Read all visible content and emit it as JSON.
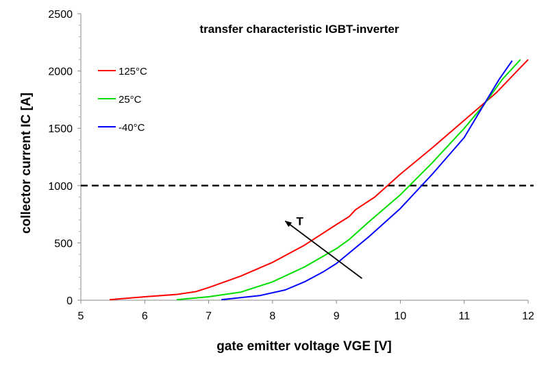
{
  "chart_data": {
    "type": "line",
    "title": "transfer characteristic IGBT-inverter",
    "xlabel": "gate emitter voltage VGE [V]",
    "ylabel": "collector current IC [A]",
    "xlim": [
      5,
      12
    ],
    "ylim": [
      0,
      2500
    ],
    "x_ticks": [
      "5",
      "6",
      "7",
      "8",
      "9",
      "10",
      "11",
      "12"
    ],
    "y_ticks": [
      "0",
      "500",
      "1000",
      "1500",
      "2000",
      "2500"
    ],
    "grid": false,
    "legend_position": "top-left",
    "series": [
      {
        "name": "125°C",
        "color": "#ff0000",
        "points": [
          [
            5.45,
            5
          ],
          [
            6.0,
            30
          ],
          [
            6.5,
            50
          ],
          [
            6.8,
            75
          ],
          [
            7.0,
            110
          ],
          [
            7.5,
            210
          ],
          [
            8.0,
            330
          ],
          [
            8.5,
            480
          ],
          [
            9.0,
            660
          ],
          [
            9.2,
            730
          ],
          [
            9.3,
            790
          ],
          [
            9.6,
            900
          ],
          [
            10.0,
            1100
          ],
          [
            10.5,
            1330
          ],
          [
            11.0,
            1570
          ],
          [
            11.5,
            1810
          ],
          [
            12.0,
            2100
          ]
        ]
      },
      {
        "name": "25°C",
        "color": "#00dd00",
        "points": [
          [
            6.5,
            5
          ],
          [
            7.0,
            30
          ],
          [
            7.5,
            70
          ],
          [
            8.0,
            160
          ],
          [
            8.5,
            290
          ],
          [
            9.0,
            450
          ],
          [
            9.2,
            530
          ],
          [
            9.5,
            680
          ],
          [
            10.0,
            920
          ],
          [
            10.5,
            1200
          ],
          [
            11.0,
            1500
          ],
          [
            11.3,
            1700
          ],
          [
            11.6,
            1930
          ],
          [
            11.88,
            2100
          ]
        ]
      },
      {
        "name": "-40°C",
        "color": "#0000ff",
        "points": [
          [
            7.2,
            5
          ],
          [
            7.8,
            40
          ],
          [
            8.2,
            90
          ],
          [
            8.5,
            160
          ],
          [
            8.8,
            250
          ],
          [
            9.0,
            320
          ],
          [
            9.5,
            550
          ],
          [
            10.0,
            800
          ],
          [
            10.5,
            1100
          ],
          [
            11.0,
            1420
          ],
          [
            11.3,
            1700
          ],
          [
            11.55,
            1930
          ],
          [
            11.75,
            2090
          ]
        ]
      }
    ],
    "reference_line": {
      "y": 1000,
      "style": "dashed",
      "color": "#000000"
    },
    "annotation": {
      "label": "T",
      "arrow_from": [
        9.4,
        190
      ],
      "arrow_to": [
        8.2,
        690
      ]
    }
  }
}
